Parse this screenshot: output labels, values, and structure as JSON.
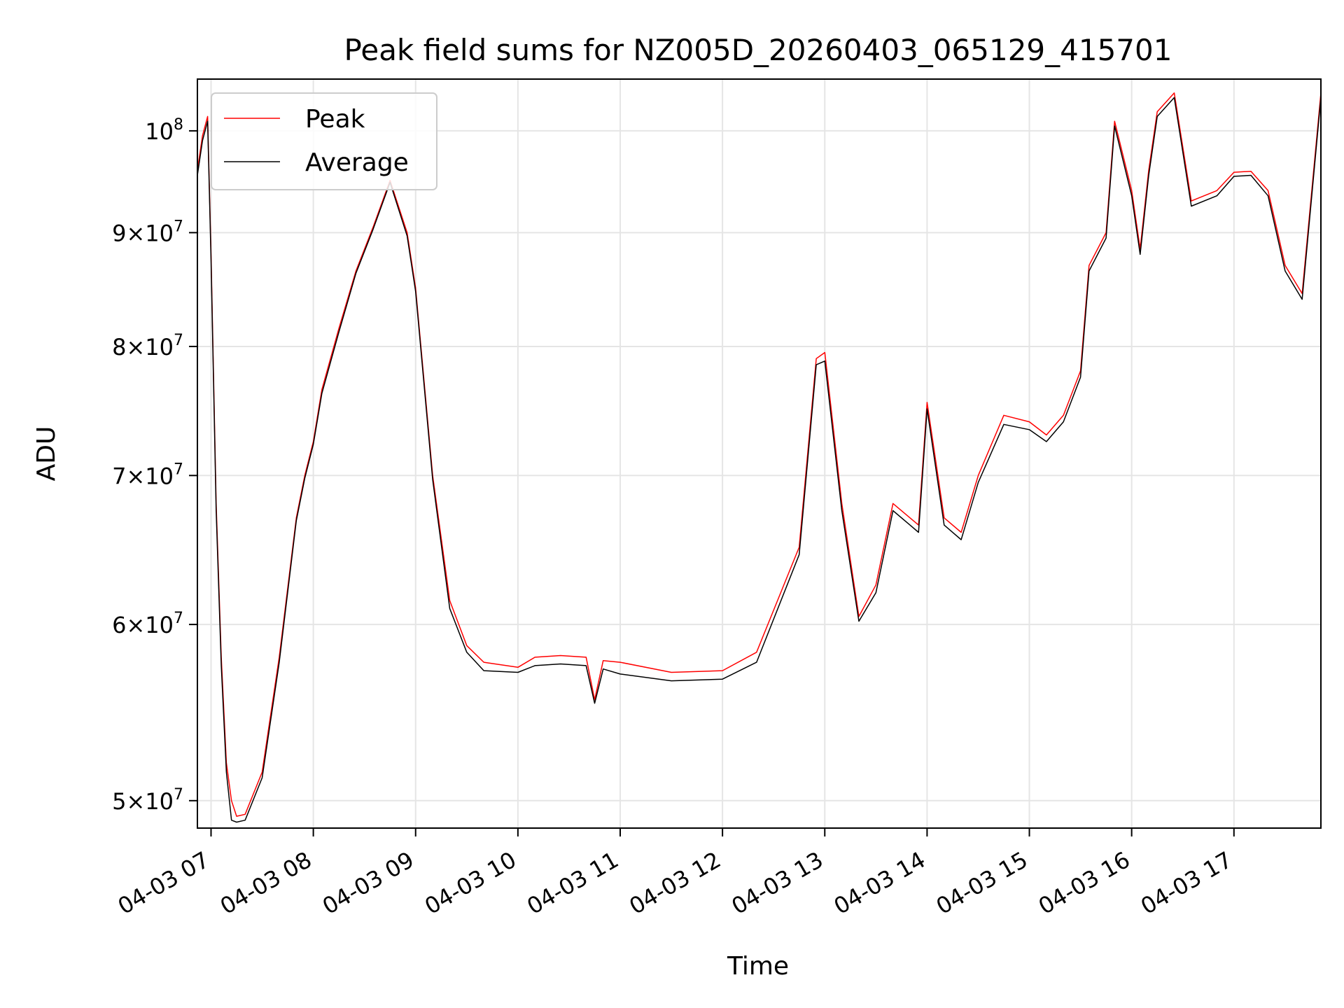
{
  "chart_data": {
    "type": "line",
    "title": "Peak field sums for NZ005D_20260403_065129_415701",
    "xlabel": "Time",
    "ylabel": "ADU",
    "yscale": "log",
    "grid": true,
    "legend_position": "upper-left",
    "xlim": [
      "04-03 06:52",
      "04-03 17:51"
    ],
    "ylim": [
      48600000,
      105500000
    ],
    "x_ticks": [
      "04-03 07",
      "04-03 08",
      "04-03 09",
      "04-03 10",
      "04-03 11",
      "04-03 12",
      "04-03 13",
      "04-03 14",
      "04-03 15",
      "04-03 16",
      "04-03 17"
    ],
    "y_ticks": [
      {
        "value": 50000000,
        "label": "5 × 10^7",
        "mantissa": "5",
        "exp": "7"
      },
      {
        "value": 60000000,
        "label": "6 × 10^7",
        "mantissa": "6",
        "exp": "7"
      },
      {
        "value": 70000000,
        "label": "7 × 10^7",
        "mantissa": "7",
        "exp": "7"
      },
      {
        "value": 80000000,
        "label": "8 × 10^7",
        "mantissa": "8",
        "exp": "7"
      },
      {
        "value": 90000000,
        "label": "9 × 10^7",
        "mantissa": "9",
        "exp": "7"
      },
      {
        "value": 100000000,
        "label": "10^8",
        "mantissa": "",
        "exp": "8"
      }
    ],
    "series": [
      {
        "name": "Peak",
        "color": "#ff0000",
        "x": [
          "04-03 06:52",
          "04-03 06:55",
          "04-03 06:58",
          "04-03 07:00",
          "04-03 07:03",
          "04-03 07:06",
          "04-03 07:09",
          "04-03 07:12",
          "04-03 07:15",
          "04-03 07:20",
          "04-03 07:30",
          "04-03 07:40",
          "04-03 07:50",
          "04-03 07:55",
          "04-03 08:00",
          "04-03 08:05",
          "04-03 08:15",
          "04-03 08:25",
          "04-03 08:35",
          "04-03 08:45",
          "04-03 08:55",
          "04-03 09:00",
          "04-03 09:10",
          "04-03 09:20",
          "04-03 09:30",
          "04-03 09:40",
          "04-03 10:00",
          "04-03 10:10",
          "04-03 10:25",
          "04-03 10:40",
          "04-03 10:45",
          "04-03 10:50",
          "04-03 11:00",
          "04-03 11:30",
          "04-03 12:00",
          "04-03 12:20",
          "04-03 12:45",
          "04-03 12:55",
          "04-03 13:00",
          "04-03 13:10",
          "04-03 13:20",
          "04-03 13:30",
          "04-03 13:40",
          "04-03 13:50",
          "04-03 13:55",
          "04-03 14:00",
          "04-03 14:10",
          "04-03 14:20",
          "04-03 14:30",
          "04-03 14:45",
          "04-03 15:00",
          "04-03 15:10",
          "04-03 15:20",
          "04-03 15:30",
          "04-03 15:35",
          "04-03 15:45",
          "04-03 15:50",
          "04-03 16:00",
          "04-03 16:05",
          "04-03 16:10",
          "04-03 16:15",
          "04-03 16:25",
          "04-03 16:35",
          "04-03 16:50",
          "04-03 17:00",
          "04-03 17:10",
          "04-03 17:20",
          "04-03 17:30",
          "04-03 17:40",
          "04-03 17:51"
        ],
        "values": [
          96000000,
          99500000,
          101500000,
          88000000,
          68000000,
          58000000,
          52000000,
          50000000,
          49200000,
          49300000,
          51500000,
          58000000,
          67000000,
          70000000,
          72500000,
          76500000,
          81500000,
          86500000,
          90500000,
          95000000,
          90000000,
          85000000,
          70000000,
          61500000,
          58700000,
          57700000,
          57400000,
          58000000,
          58100000,
          58000000,
          55500000,
          57800000,
          57700000,
          57100000,
          57200000,
          58300000,
          65000000,
          79000000,
          79500000,
          68000000,
          60500000,
          62500000,
          68000000,
          67000000,
          66500000,
          75500000,
          67000000,
          66000000,
          70000000,
          74500000,
          74000000,
          73000000,
          74500000,
          78000000,
          87000000,
          90000000,
          101000000,
          94000000,
          88500000,
          96000000,
          102000000,
          104000000,
          93000000,
          94000000,
          95800000,
          95900000,
          94000000,
          87000000,
          84500000,
          104000000
        ]
      },
      {
        "name": "Average",
        "color": "#000000",
        "x": [
          "04-03 06:52",
          "04-03 06:55",
          "04-03 06:58",
          "04-03 07:00",
          "04-03 07:03",
          "04-03 07:06",
          "04-03 07:09",
          "04-03 07:12",
          "04-03 07:15",
          "04-03 07:20",
          "04-03 07:30",
          "04-03 07:40",
          "04-03 07:50",
          "04-03 07:55",
          "04-03 08:00",
          "04-03 08:05",
          "04-03 08:15",
          "04-03 08:25",
          "04-03 08:35",
          "04-03 08:45",
          "04-03 08:55",
          "04-03 09:00",
          "04-03 09:10",
          "04-03 09:20",
          "04-03 09:30",
          "04-03 09:40",
          "04-03 10:00",
          "04-03 10:10",
          "04-03 10:25",
          "04-03 10:40",
          "04-03 10:45",
          "04-03 10:50",
          "04-03 11:00",
          "04-03 11:30",
          "04-03 12:00",
          "04-03 12:20",
          "04-03 12:45",
          "04-03 12:55",
          "04-03 13:00",
          "04-03 13:10",
          "04-03 13:20",
          "04-03 13:30",
          "04-03 13:40",
          "04-03 13:50",
          "04-03 13:55",
          "04-03 14:00",
          "04-03 14:10",
          "04-03 14:20",
          "04-03 14:30",
          "04-03 14:45",
          "04-03 15:00",
          "04-03 15:10",
          "04-03 15:20",
          "04-03 15:30",
          "04-03 15:35",
          "04-03 15:45",
          "04-03 15:50",
          "04-03 16:00",
          "04-03 16:05",
          "04-03 16:10",
          "04-03 16:15",
          "04-03 16:25",
          "04-03 16:35",
          "04-03 16:50",
          "04-03 17:00",
          "04-03 17:10",
          "04-03 17:20",
          "04-03 17:30",
          "04-03 17:40",
          "04-03 17:51"
        ],
        "values": [
          95500000,
          99000000,
          101000000,
          87500000,
          67500000,
          57500000,
          51500000,
          49000000,
          48900000,
          49000000,
          51200000,
          57700000,
          66800000,
          69800000,
          72300000,
          76200000,
          81200000,
          86300000,
          90300000,
          94800000,
          89700000,
          84700000,
          69700000,
          61000000,
          58300000,
          57200000,
          57100000,
          57500000,
          57600000,
          57500000,
          55300000,
          57300000,
          57000000,
          56600000,
          56700000,
          57700000,
          64500000,
          78500000,
          78800000,
          67500000,
          60200000,
          62000000,
          67500000,
          66500000,
          66000000,
          75000000,
          66500000,
          65500000,
          69500000,
          73800000,
          73400000,
          72500000,
          74000000,
          77500000,
          86500000,
          89500000,
          100500000,
          93500000,
          88000000,
          95500000,
          101500000,
          103500000,
          92500000,
          93500000,
          95400000,
          95500000,
          93500000,
          86500000,
          84000000,
          103500000
        ]
      }
    ]
  }
}
